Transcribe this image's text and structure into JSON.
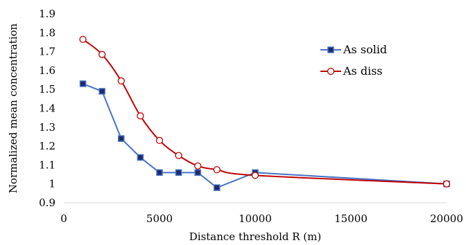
{
  "chart_data": {
    "type": "line",
    "xlabel": "Distance threshold R (m)",
    "ylabel": "Normalized mean concentration",
    "xlim": [
      0,
      20000
    ],
    "ylim": [
      0.9,
      1.9
    ],
    "xticks": [
      0,
      5000,
      10000,
      15000,
      20000
    ],
    "yticks": [
      0.9,
      1,
      1.1,
      1.2,
      1.3,
      1.4,
      1.5,
      1.6,
      1.7,
      1.8,
      1.9
    ],
    "grid": false,
    "legend_position": "right",
    "series": [
      {
        "name": "As solid",
        "color": "#4472C4",
        "marker": "filled-square",
        "marker_color": "#1F2A6B",
        "smooth": false,
        "x": [
          1000,
          2000,
          3000,
          4000,
          5000,
          6000,
          7000,
          8000,
          10000,
          20000
        ],
        "y": [
          1.53,
          1.49,
          1.24,
          1.14,
          1.06,
          1.06,
          1.06,
          0.98,
          1.06,
          1.0
        ]
      },
      {
        "name": "As diss",
        "color": "#C00000",
        "marker": "open-circle",
        "marker_color": "#C00000",
        "smooth": true,
        "x": [
          1000,
          2000,
          3000,
          4000,
          5000,
          6000,
          7000,
          8000,
          10000,
          20000
        ],
        "y": [
          1.765,
          1.685,
          1.545,
          1.36,
          1.23,
          1.15,
          1.095,
          1.075,
          1.045,
          1.0
        ]
      }
    ]
  }
}
